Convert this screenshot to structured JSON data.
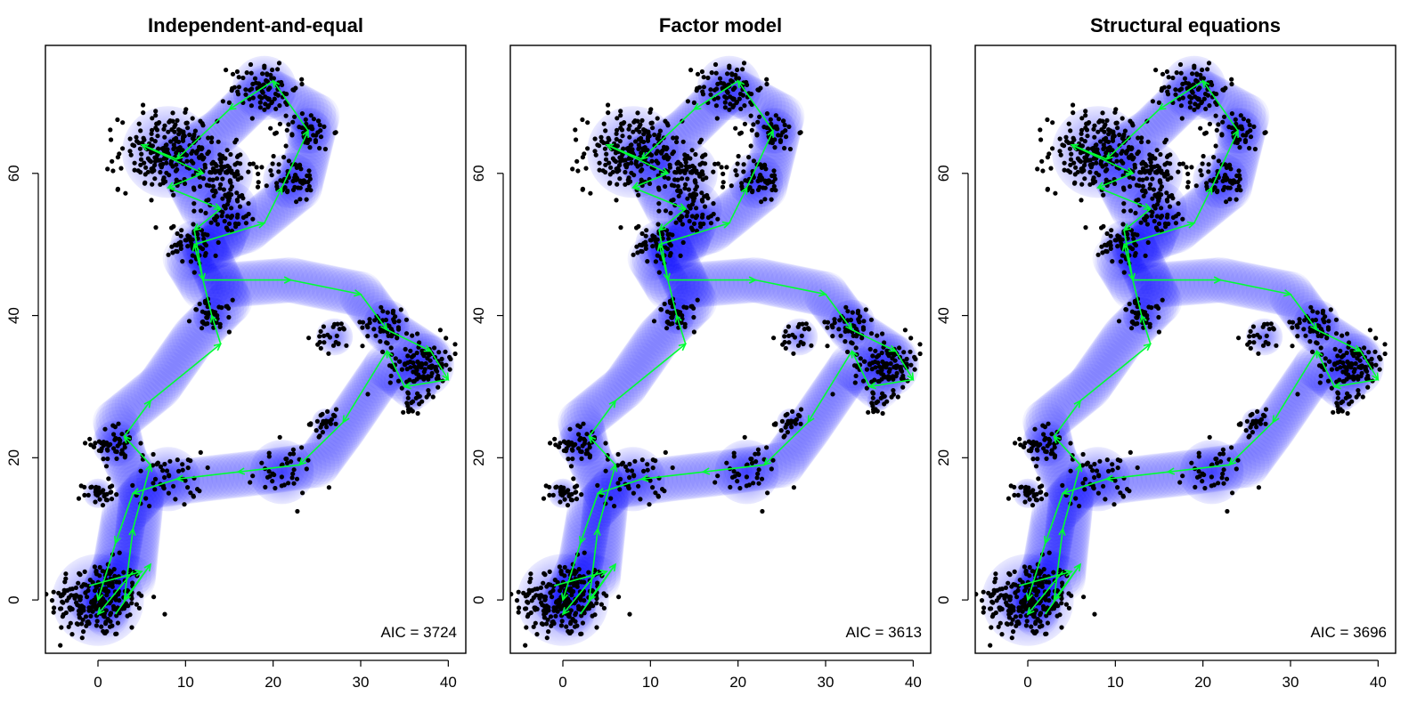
{
  "chart_data": [
    {
      "type": "scatter",
      "title": "Independent-and-equal",
      "annotation": "AIC = 3724",
      "xlim": [
        -6,
        42
      ],
      "ylim": [
        -7.5,
        78
      ],
      "xticks": [
        0,
        10,
        20,
        30,
        40
      ],
      "yticks": [
        0,
        20,
        40,
        60
      ],
      "grid": false,
      "path": [
        [
          -1,
          0
        ],
        [
          1,
          -2
        ],
        [
          2,
          4
        ],
        [
          4,
          3
        ],
        [
          5,
          15
        ],
        [
          3,
          20
        ],
        [
          2,
          25
        ],
        [
          7,
          30
        ],
        [
          11,
          37
        ],
        [
          15,
          42
        ],
        [
          12,
          50
        ],
        [
          17,
          52
        ],
        [
          23,
          58
        ],
        [
          25,
          68
        ],
        [
          19,
          72
        ],
        [
          14,
          66
        ],
        [
          9,
          62
        ],
        [
          12,
          55
        ],
        [
          15,
          53
        ],
        [
          14,
          50
        ],
        [
          10,
          48
        ],
        [
          12,
          44
        ],
        [
          22,
          45
        ],
        [
          30,
          43
        ],
        [
          33,
          38
        ],
        [
          38,
          34
        ],
        [
          36,
          30
        ],
        [
          33,
          33
        ],
        [
          28,
          24
        ],
        [
          25,
          19
        ],
        [
          19,
          18
        ],
        [
          12,
          17
        ],
        [
          6,
          16
        ],
        [
          3,
          12
        ],
        [
          2,
          5
        ],
        [
          0,
          -1
        ]
      ],
      "clusters": [
        [
          0,
          0,
          5.0,
          240
        ],
        [
          0,
          15,
          1.6,
          35
        ],
        [
          2,
          22,
          2.5,
          50
        ],
        [
          8,
          17,
          3.5,
          50
        ],
        [
          21,
          18,
          3.5,
          40
        ],
        [
          26,
          25,
          1.5,
          25
        ],
        [
          13,
          40,
          2.0,
          45
        ],
        [
          11,
          50,
          2.6,
          60
        ],
        [
          8,
          63,
          5.0,
          230
        ],
        [
          14,
          60,
          3.5,
          70
        ],
        [
          19,
          72,
          3.5,
          90
        ],
        [
          24,
          66,
          2.5,
          50
        ],
        [
          22,
          59,
          3.0,
          60
        ],
        [
          15,
          55,
          3.0,
          55
        ],
        [
          27,
          37,
          2.0,
          25
        ],
        [
          33,
          39,
          2.5,
          50
        ],
        [
          37,
          33,
          3.5,
          120
        ],
        [
          36,
          28,
          1.2,
          15
        ]
      ],
      "arrows": [
        [
          -1,
          2,
          5,
          4
        ],
        [
          4,
          4,
          0,
          -2
        ],
        [
          2,
          -2,
          6,
          5
        ],
        [
          6,
          5,
          3,
          0
        ],
        [
          3,
          0,
          4,
          10
        ],
        [
          4,
          10,
          6,
          19
        ],
        [
          6,
          19,
          3,
          23
        ],
        [
          3,
          23,
          6,
          28
        ],
        [
          6,
          28,
          14,
          36
        ],
        [
          14,
          36,
          13,
          40
        ],
        [
          13,
          40,
          11,
          50
        ],
        [
          11,
          50,
          19,
          53
        ],
        [
          19,
          53,
          21,
          58
        ],
        [
          21,
          58,
          24,
          66
        ],
        [
          24,
          66,
          20,
          73
        ],
        [
          20,
          73,
          15,
          69
        ],
        [
          15,
          69,
          9,
          62
        ],
        [
          9,
          62,
          5,
          64
        ],
        [
          5,
          64,
          12,
          60
        ],
        [
          12,
          60,
          8,
          58
        ],
        [
          8,
          58,
          14,
          55
        ],
        [
          14,
          55,
          11,
          52
        ],
        [
          11,
          52,
          12,
          45
        ],
        [
          12,
          45,
          22,
          45
        ],
        [
          22,
          45,
          30,
          43
        ],
        [
          30,
          43,
          33,
          38
        ],
        [
          33,
          38,
          38,
          35
        ],
        [
          38,
          35,
          40,
          31
        ],
        [
          40,
          31,
          35,
          30
        ],
        [
          35,
          30,
          33,
          35
        ],
        [
          33,
          35,
          28,
          25
        ],
        [
          28,
          25,
          23,
          19
        ],
        [
          23,
          19,
          16,
          18
        ],
        [
          16,
          18,
          9,
          17
        ],
        [
          9,
          17,
          4,
          15
        ],
        [
          4,
          15,
          2,
          8
        ],
        [
          2,
          8,
          0,
          0
        ]
      ],
      "colors": {
        "points": "#000000",
        "arrows": "#00ff33",
        "ellipse": "#0000ff"
      }
    },
    {
      "type": "scatter",
      "title": "Factor model",
      "annotation": "AIC = 3613",
      "xlim": [
        -6,
        42
      ],
      "ylim": [
        -7.5,
        78
      ],
      "xticks": [
        0,
        10,
        20,
        30,
        40
      ],
      "yticks": [
        0,
        20,
        40,
        60
      ],
      "grid": false,
      "path": [
        [
          -1,
          0
        ],
        [
          1,
          -2
        ],
        [
          2,
          4
        ],
        [
          4,
          3
        ],
        [
          5,
          15
        ],
        [
          3,
          20
        ],
        [
          2,
          25
        ],
        [
          7,
          30
        ],
        [
          11,
          37
        ],
        [
          15,
          42
        ],
        [
          12,
          50
        ],
        [
          17,
          52
        ],
        [
          23,
          58
        ],
        [
          25,
          68
        ],
        [
          19,
          72
        ],
        [
          14,
          66
        ],
        [
          9,
          62
        ],
        [
          12,
          55
        ],
        [
          15,
          53
        ],
        [
          14,
          50
        ],
        [
          10,
          48
        ],
        [
          12,
          44
        ],
        [
          22,
          45
        ],
        [
          30,
          43
        ],
        [
          33,
          38
        ],
        [
          38,
          34
        ],
        [
          36,
          30
        ],
        [
          33,
          33
        ],
        [
          28,
          24
        ],
        [
          25,
          19
        ],
        [
          19,
          18
        ],
        [
          12,
          17
        ],
        [
          6,
          16
        ],
        [
          3,
          12
        ],
        [
          2,
          5
        ],
        [
          0,
          -1
        ]
      ],
      "clusters": [
        [
          0,
          0,
          5.0,
          240
        ],
        [
          0,
          15,
          1.6,
          35
        ],
        [
          2,
          22,
          2.5,
          50
        ],
        [
          8,
          17,
          3.5,
          50
        ],
        [
          21,
          18,
          3.5,
          40
        ],
        [
          26,
          25,
          1.5,
          25
        ],
        [
          13,
          40,
          2.0,
          45
        ],
        [
          11,
          50,
          2.6,
          60
        ],
        [
          8,
          63,
          5.0,
          230
        ],
        [
          14,
          60,
          3.5,
          70
        ],
        [
          19,
          72,
          3.5,
          90
        ],
        [
          24,
          66,
          2.5,
          50
        ],
        [
          22,
          59,
          3.0,
          60
        ],
        [
          15,
          55,
          3.0,
          55
        ],
        [
          27,
          37,
          2.0,
          25
        ],
        [
          33,
          39,
          2.5,
          50
        ],
        [
          37,
          33,
          3.5,
          120
        ],
        [
          36,
          28,
          1.2,
          15
        ]
      ],
      "arrows": [
        [
          -1,
          2,
          5,
          4
        ],
        [
          4,
          4,
          0,
          -2
        ],
        [
          2,
          -2,
          6,
          5
        ],
        [
          6,
          5,
          3,
          0
        ],
        [
          3,
          0,
          4,
          10
        ],
        [
          4,
          10,
          6,
          19
        ],
        [
          6,
          19,
          3,
          23
        ],
        [
          3,
          23,
          6,
          28
        ],
        [
          6,
          28,
          14,
          36
        ],
        [
          14,
          36,
          13,
          40
        ],
        [
          13,
          40,
          11,
          50
        ],
        [
          11,
          50,
          19,
          53
        ],
        [
          19,
          53,
          21,
          58
        ],
        [
          21,
          58,
          24,
          66
        ],
        [
          24,
          66,
          20,
          73
        ],
        [
          20,
          73,
          15,
          69
        ],
        [
          15,
          69,
          9,
          62
        ],
        [
          9,
          62,
          5,
          64
        ],
        [
          5,
          64,
          12,
          60
        ],
        [
          12,
          60,
          8,
          58
        ],
        [
          8,
          58,
          14,
          55
        ],
        [
          14,
          55,
          11,
          52
        ],
        [
          11,
          52,
          12,
          45
        ],
        [
          12,
          45,
          22,
          45
        ],
        [
          22,
          45,
          30,
          43
        ],
        [
          30,
          43,
          33,
          38
        ],
        [
          33,
          38,
          38,
          35
        ],
        [
          38,
          35,
          40,
          31
        ],
        [
          40,
          31,
          35,
          30
        ],
        [
          35,
          30,
          33,
          35
        ],
        [
          33,
          35,
          28,
          25
        ],
        [
          28,
          25,
          23,
          19
        ],
        [
          23,
          19,
          16,
          18
        ],
        [
          16,
          18,
          9,
          17
        ],
        [
          9,
          17,
          4,
          15
        ],
        [
          4,
          15,
          2,
          8
        ],
        [
          2,
          8,
          0,
          0
        ]
      ],
      "colors": {
        "points": "#000000",
        "arrows": "#00ff33",
        "ellipse": "#0000ff"
      }
    },
    {
      "type": "scatter",
      "title": "Structural equations",
      "annotation": "AIC = 3696",
      "xlim": [
        -6,
        42
      ],
      "ylim": [
        -7.5,
        78
      ],
      "xticks": [
        0,
        10,
        20,
        30,
        40
      ],
      "yticks": [
        0,
        20,
        40,
        60
      ],
      "grid": false,
      "path": [
        [
          -1,
          0
        ],
        [
          1,
          -2
        ],
        [
          2,
          4
        ],
        [
          4,
          3
        ],
        [
          5,
          15
        ],
        [
          3,
          20
        ],
        [
          2,
          25
        ],
        [
          7,
          30
        ],
        [
          11,
          37
        ],
        [
          15,
          42
        ],
        [
          12,
          50
        ],
        [
          17,
          52
        ],
        [
          23,
          58
        ],
        [
          25,
          68
        ],
        [
          19,
          72
        ],
        [
          14,
          66
        ],
        [
          9,
          62
        ],
        [
          12,
          55
        ],
        [
          15,
          53
        ],
        [
          14,
          50
        ],
        [
          10,
          48
        ],
        [
          12,
          44
        ],
        [
          22,
          45
        ],
        [
          30,
          43
        ],
        [
          33,
          38
        ],
        [
          38,
          34
        ],
        [
          36,
          30
        ],
        [
          33,
          33
        ],
        [
          28,
          24
        ],
        [
          25,
          19
        ],
        [
          19,
          18
        ],
        [
          12,
          17
        ],
        [
          6,
          16
        ],
        [
          3,
          12
        ],
        [
          2,
          5
        ],
        [
          0,
          -1
        ]
      ],
      "clusters": [
        [
          0,
          0,
          5.0,
          240
        ],
        [
          0,
          15,
          1.6,
          35
        ],
        [
          2,
          22,
          2.5,
          50
        ],
        [
          8,
          17,
          3.5,
          50
        ],
        [
          21,
          18,
          3.5,
          40
        ],
        [
          26,
          25,
          1.5,
          25
        ],
        [
          13,
          40,
          2.0,
          45
        ],
        [
          11,
          50,
          2.6,
          60
        ],
        [
          8,
          63,
          5.0,
          230
        ],
        [
          14,
          60,
          3.5,
          70
        ],
        [
          19,
          72,
          3.5,
          90
        ],
        [
          24,
          66,
          2.5,
          50
        ],
        [
          22,
          59,
          3.0,
          60
        ],
        [
          15,
          55,
          3.0,
          55
        ],
        [
          27,
          37,
          2.0,
          25
        ],
        [
          33,
          39,
          2.5,
          50
        ],
        [
          37,
          33,
          3.5,
          120
        ],
        [
          36,
          28,
          1.2,
          15
        ]
      ],
      "arrows": [
        [
          -1,
          2,
          5,
          4
        ],
        [
          4,
          4,
          0,
          -2
        ],
        [
          2,
          -2,
          6,
          5
        ],
        [
          6,
          5,
          3,
          0
        ],
        [
          3,
          0,
          4,
          10
        ],
        [
          4,
          10,
          6,
          19
        ],
        [
          6,
          19,
          3,
          23
        ],
        [
          3,
          23,
          6,
          28
        ],
        [
          6,
          28,
          14,
          36
        ],
        [
          14,
          36,
          13,
          40
        ],
        [
          13,
          40,
          11,
          50
        ],
        [
          11,
          50,
          19,
          53
        ],
        [
          19,
          53,
          21,
          58
        ],
        [
          21,
          58,
          24,
          66
        ],
        [
          24,
          66,
          20,
          73
        ],
        [
          20,
          73,
          15,
          69
        ],
        [
          15,
          69,
          9,
          62
        ],
        [
          9,
          62,
          5,
          64
        ],
        [
          5,
          64,
          12,
          60
        ],
        [
          12,
          60,
          8,
          58
        ],
        [
          8,
          58,
          14,
          55
        ],
        [
          14,
          55,
          11,
          52
        ],
        [
          11,
          52,
          12,
          45
        ],
        [
          12,
          45,
          22,
          45
        ],
        [
          22,
          45,
          30,
          43
        ],
        [
          30,
          43,
          33,
          38
        ],
        [
          33,
          38,
          38,
          35
        ],
        [
          38,
          35,
          40,
          31
        ],
        [
          40,
          31,
          35,
          30
        ],
        [
          35,
          30,
          33,
          35
        ],
        [
          33,
          35,
          28,
          25
        ],
        [
          28,
          25,
          23,
          19
        ],
        [
          23,
          19,
          16,
          18
        ],
        [
          16,
          18,
          9,
          17
        ],
        [
          9,
          17,
          4,
          15
        ],
        [
          4,
          15,
          2,
          8
        ],
        [
          2,
          8,
          0,
          0
        ]
      ],
      "colors": {
        "points": "#000000",
        "arrows": "#00ff33",
        "ellipse": "#0000ff"
      }
    }
  ]
}
